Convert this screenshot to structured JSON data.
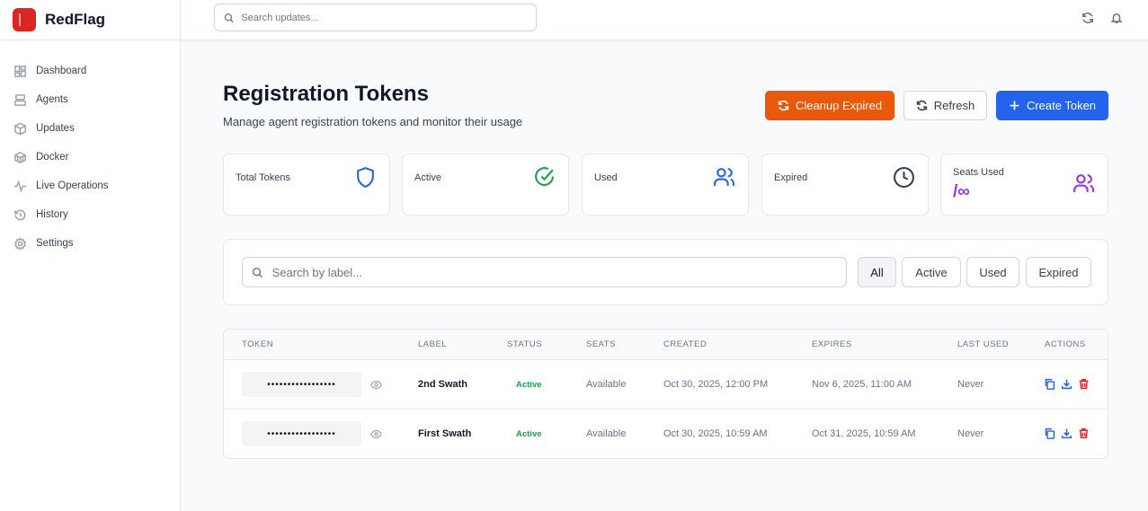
{
  "app": {
    "name": "RedFlag",
    "brand_color": "#dc2626"
  },
  "sidebar": {
    "items": [
      {
        "label": "Dashboard",
        "icon": "grid-icon"
      },
      {
        "label": "Agents",
        "icon": "server-icon"
      },
      {
        "label": "Updates",
        "icon": "package-icon"
      },
      {
        "label": "Docker",
        "icon": "container-icon"
      },
      {
        "label": "Live Operations",
        "icon": "activity-icon"
      },
      {
        "label": "History",
        "icon": "history-icon"
      },
      {
        "label": "Settings",
        "icon": "gear-icon"
      }
    ]
  },
  "topbar": {
    "search_placeholder": "Search updates..."
  },
  "page": {
    "title": "Registration Tokens",
    "subtitle": "Manage agent registration tokens and monitor their usage"
  },
  "actions": {
    "cleanup": "Cleanup Expired",
    "refresh": "Refresh",
    "create": "Create Token"
  },
  "stats": [
    {
      "label": "Total Tokens",
      "icon": "shield-icon",
      "color": "#2563eb"
    },
    {
      "label": "Active",
      "icon": "check-circle-icon",
      "color": "#16a34a"
    },
    {
      "label": "Used",
      "icon": "users-icon",
      "color": "#2563eb"
    },
    {
      "label": "Expired",
      "icon": "clock-icon",
      "color": "#374151"
    },
    {
      "label": "Seats Used",
      "value": "/∞",
      "icon": "users-icon",
      "color": "#9333ea"
    }
  ],
  "filter": {
    "placeholder": "Search by label...",
    "options": [
      "All",
      "Active",
      "Used",
      "Expired"
    ],
    "selected": "All"
  },
  "table": {
    "headers": [
      "TOKEN",
      "LABEL",
      "STATUS",
      "SEATS",
      "CREATED",
      "EXPIRES",
      "LAST USED",
      "ACTIONS"
    ],
    "rows": [
      {
        "token": "•••••••••••••••••",
        "label": "2nd Swath",
        "status": "Active",
        "seats": "Available",
        "created": "Oct 30, 2025, 12:00 PM",
        "expires": "Nov 6, 2025, 11:00 AM",
        "last_used": "Never"
      },
      {
        "token": "•••••••••••••••••",
        "label": "First Swath",
        "status": "Active",
        "seats": "Available",
        "created": "Oct 30, 2025, 10:59 AM",
        "expires": "Oct 31, 2025, 10:59 AM",
        "last_used": "Never"
      }
    ]
  }
}
